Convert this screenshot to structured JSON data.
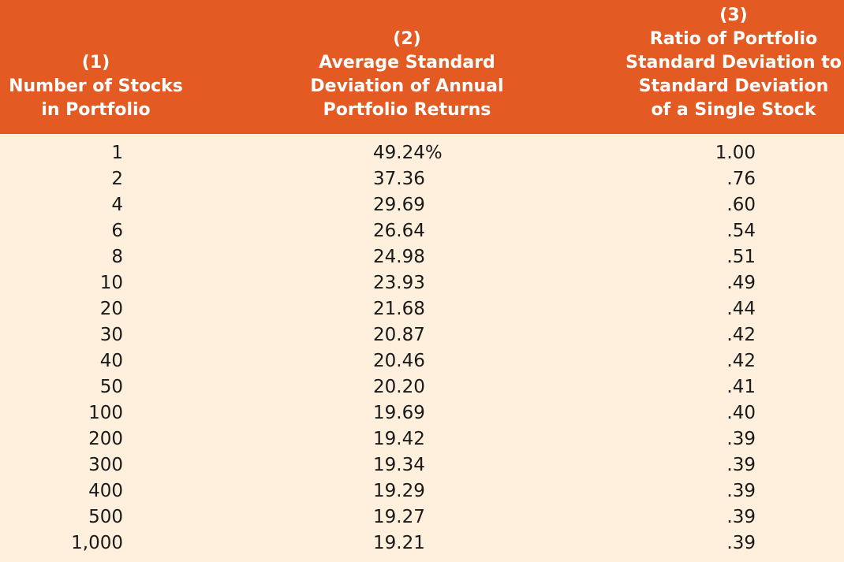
{
  "header": {
    "col1": [
      "(1)",
      "Number of Stocks",
      "in Portfolio"
    ],
    "col2": [
      "(2)",
      "Average Standard",
      "Deviation of Annual",
      "Portfolio Returns"
    ],
    "col3": [
      "(3)",
      "Ratio of Portfolio",
      "Standard Deviation to",
      "Standard Deviation",
      "of a Single Stock"
    ]
  },
  "rows": [
    {
      "stocks": "1",
      "avg_sd": "49.24%",
      "ratio": "1.00"
    },
    {
      "stocks": "2",
      "avg_sd": "37.36",
      "ratio": ".76"
    },
    {
      "stocks": "4",
      "avg_sd": "29.69",
      "ratio": ".60"
    },
    {
      "stocks": "6",
      "avg_sd": "26.64",
      "ratio": ".54"
    },
    {
      "stocks": "8",
      "avg_sd": "24.98",
      "ratio": ".51"
    },
    {
      "stocks": "10",
      "avg_sd": "23.93",
      "ratio": ".49"
    },
    {
      "stocks": "20",
      "avg_sd": "21.68",
      "ratio": ".44"
    },
    {
      "stocks": "30",
      "avg_sd": "20.87",
      "ratio": ".42"
    },
    {
      "stocks": "40",
      "avg_sd": "20.46",
      "ratio": ".42"
    },
    {
      "stocks": "50",
      "avg_sd": "20.20",
      "ratio": ".41"
    },
    {
      "stocks": "100",
      "avg_sd": "19.69",
      "ratio": ".40"
    },
    {
      "stocks": "200",
      "avg_sd": "19.42",
      "ratio": ".39"
    },
    {
      "stocks": "300",
      "avg_sd": "19.34",
      "ratio": ".39"
    },
    {
      "stocks": "400",
      "avg_sd": "19.29",
      "ratio": ".39"
    },
    {
      "stocks": "500",
      "avg_sd": "19.27",
      "ratio": ".39"
    },
    {
      "stocks": "1,000",
      "avg_sd": "19.21",
      "ratio": ".39"
    }
  ],
  "colors": {
    "header_bg": "#E35B23",
    "header_text": "#FFFFFF",
    "body_bg": "#FEF0DD",
    "body_text": "#1A1A1A"
  }
}
